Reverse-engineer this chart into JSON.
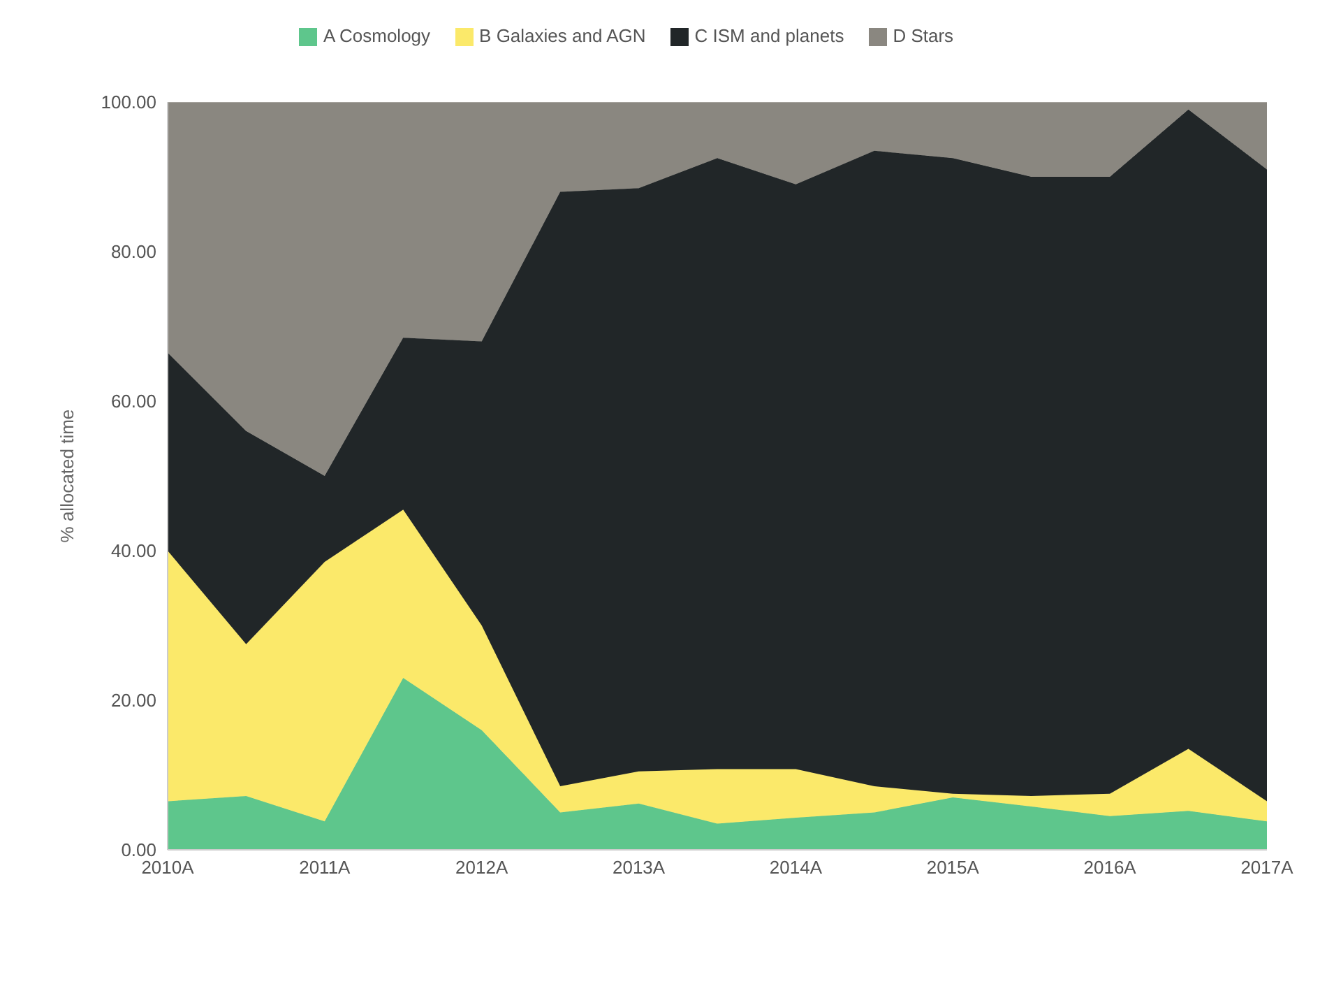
{
  "chart_data": {
    "type": "area",
    "stacked": true,
    "ylabel": "% allocated time",
    "legend": "top",
    "grid": false,
    "categories": [
      "2010A",
      null,
      "2011A",
      null,
      "2012A",
      null,
      "2013A",
      null,
      "2014A",
      null,
      "2015A",
      null,
      "2016A",
      null,
      "2017A"
    ],
    "ylim": [
      0,
      100
    ],
    "yticks": [
      {
        "value": 0,
        "label": "0.00"
      },
      {
        "value": 20,
        "label": "20.00"
      },
      {
        "value": 40,
        "label": "40.00"
      },
      {
        "value": 60,
        "label": "60.00"
      },
      {
        "value": 80,
        "label": "80.00"
      },
      {
        "value": 100,
        "label": "100.00"
      }
    ],
    "series": [
      {
        "name": "A Cosmology",
        "color": "#5ec68c",
        "values": [
          6.5,
          7.2,
          3.8,
          23,
          16,
          5,
          6.2,
          3.5,
          4.3,
          5,
          7,
          5.8,
          4.5,
          5.2,
          3.8
        ]
      },
      {
        "name": "B Galaxies and AGN",
        "color": "#fbe96a",
        "values": [
          33.5,
          20.3,
          34.7,
          22.5,
          14,
          3.5,
          4.3,
          7.3,
          6.5,
          3.5,
          0.5,
          1.4,
          3,
          8.3,
          2.7
        ]
      },
      {
        "name": "C ISM and planets",
        "color": "#212628",
        "values": [
          26.5,
          28.5,
          11.5,
          23,
          38,
          79.5,
          78,
          81.7,
          78.2,
          85,
          85,
          82.8,
          82.5,
          85.5,
          84.5
        ]
      },
      {
        "name": "D Stars",
        "color": "#8a8780",
        "values": [
          33.5,
          44,
          50,
          31.5,
          32,
          12,
          11.5,
          7.5,
          11,
          6.5,
          7.5,
          10,
          10,
          1,
          9
        ]
      }
    ]
  }
}
